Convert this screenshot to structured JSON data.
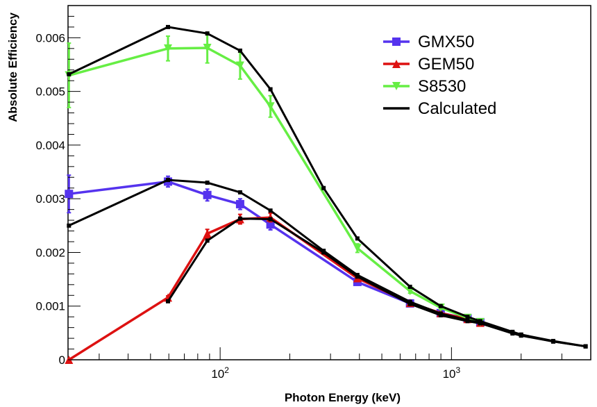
{
  "chart_data": {
    "type": "line",
    "xlabel": "Photon Energy (keV)",
    "ylabel": "Absolute Efficiency",
    "xscale": "log",
    "xlim": [
      22,
      4000
    ],
    "ylim": [
      0,
      0.0066
    ],
    "grid": false,
    "legend_position": "top-right",
    "y_ticks": [
      {
        "value": 0,
        "label": "0"
      },
      {
        "value": 0.001,
        "label": "0.001"
      },
      {
        "value": 0.002,
        "label": "0.002"
      },
      {
        "value": 0.003,
        "label": "0.003"
      },
      {
        "value": 0.004,
        "label": "0.004"
      },
      {
        "value": 0.005,
        "label": "0.005"
      },
      {
        "value": 0.006,
        "label": "0.006"
      }
    ],
    "x_ticks": [
      {
        "value": 100,
        "base": "10",
        "exp": "2"
      },
      {
        "value": 1000,
        "base": "10",
        "exp": "3"
      }
    ],
    "series": [
      {
        "name": "GMX50",
        "color": "#5533ee",
        "marker": "square",
        "x": [
          22.2,
          59.5,
          88,
          122,
          165,
          392,
          662,
          898,
          1173,
          1332
        ],
        "y": [
          0.00309,
          0.00332,
          0.00307,
          0.0029,
          0.00252,
          0.00145,
          0.00105,
          0.00087,
          0.00077,
          0.0007
        ],
        "err": [
          0.00035,
          0.0001,
          0.00011,
          0.0001,
          0.0001,
          3e-05,
          3e-05,
          2e-05,
          2e-05,
          2e-05
        ]
      },
      {
        "name": "GEM50",
        "color": "#dd1111",
        "marker": "triangle-up",
        "x": [
          22.2,
          59.5,
          88,
          122,
          165,
          392,
          662,
          898,
          1173,
          1332
        ],
        "y": [
          0.0,
          0.00116,
          0.00235,
          0.00262,
          0.00265,
          0.00152,
          0.00106,
          0.00087,
          0.00076,
          0.00069
        ],
        "err": [
          0.0,
          3e-05,
          8e-05,
          9e-05,
          8e-05,
          3e-05,
          3e-05,
          2e-05,
          2e-05,
          2e-05
        ]
      },
      {
        "name": "S8530",
        "color": "#66ee44",
        "marker": "triangle-down",
        "x": [
          22.2,
          59.5,
          88,
          122,
          165,
          392,
          662,
          898,
          1173,
          1332
        ],
        "y": [
          0.0053,
          0.0058,
          0.00581,
          0.00548,
          0.00472,
          0.00208,
          0.00128,
          0.00097,
          0.00078,
          0.0007
        ],
        "err": [
          0.0006,
          0.00023,
          0.00028,
          0.00025,
          0.0002,
          8e-05,
          4e-05,
          3e-05,
          2e-05,
          2e-05
        ]
      },
      {
        "name": "Calculated",
        "color": "#000000",
        "marker": "small-square",
        "curves": [
          {
            "x": [
              22.2,
              59.5,
              88,
              122,
              165,
              280,
              392,
              662,
              898,
              1173,
              1332,
              1836,
              2000,
              2754,
              3800
            ],
            "y": [
              0.00532,
              0.0062,
              0.00608,
              0.00576,
              0.00504,
              0.0032,
              0.00226,
              0.00136,
              0.001,
              0.0008,
              0.00072,
              0.00052,
              0.00047,
              0.00035,
              0.00025
            ]
          },
          {
            "x": [
              22.2,
              59.5,
              88,
              122,
              165,
              280,
              392,
              662,
              898,
              1173,
              1332,
              1836,
              2000,
              2754,
              3800
            ],
            "y": [
              0.0025,
              0.00335,
              0.0033,
              0.00312,
              0.00278,
              0.00203,
              0.00158,
              0.00108,
              0.00086,
              0.00074,
              0.00069,
              0.0005,
              0.00046,
              0.00034,
              0.00025
            ]
          },
          {
            "x": [
              59.5,
              88,
              122,
              165,
              280,
              392,
              662,
              898,
              1173,
              1332,
              1836,
              2000,
              2754,
              3800
            ],
            "y": [
              0.00109,
              0.00222,
              0.00263,
              0.00262,
              0.002,
              0.00155,
              0.00104,
              0.00083,
              0.00072,
              0.00068,
              0.00049,
              0.00045,
              0.00034,
              0.00025
            ]
          }
        ]
      }
    ]
  }
}
